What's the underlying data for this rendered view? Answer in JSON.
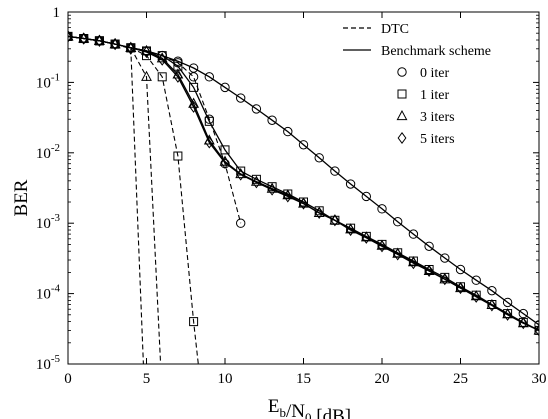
{
  "chart_data": {
    "type": "line",
    "xlabel": "E_b/N_0 [dB]",
    "ylabel": "BER",
    "xlim": [
      0,
      30
    ],
    "ylim": [
      1e-05,
      1
    ],
    "yscale": "log",
    "grid": false,
    "legend_position": "top-right",
    "x_ticks": [
      "0",
      "5",
      "10",
      "15",
      "20",
      "25",
      "30"
    ],
    "y_ticks": [
      {
        "value": 1e-05,
        "base": "10",
        "exp": "-5"
      },
      {
        "value": 0.0001,
        "base": "10",
        "exp": "-4"
      },
      {
        "value": 0.001,
        "base": "10",
        "exp": "-3"
      },
      {
        "value": 0.01,
        "base": "10",
        "exp": "-2"
      },
      {
        "value": 0.1,
        "base": "10",
        "exp": "-1"
      },
      {
        "value": 1,
        "base": "1",
        "exp": ""
      }
    ],
    "legend": {
      "lines": [
        {
          "label": "DTC",
          "style": "dashed"
        },
        {
          "label": "Benchmark scheme",
          "style": "solid"
        }
      ],
      "markers": [
        {
          "label": "0 iter",
          "marker": "circle"
        },
        {
          "label": "1 iter",
          "marker": "square"
        },
        {
          "label": "3 iters",
          "marker": "triangle"
        },
        {
          "label": "5 iters",
          "marker": "diamond"
        }
      ]
    },
    "series": [
      {
        "name": "Benchmark scheme",
        "iteration": "0 iter",
        "style": "solid",
        "marker": "circle",
        "x": [
          0,
          1,
          2,
          3,
          4,
          5,
          6,
          7,
          8,
          9,
          10,
          11,
          12,
          13,
          14,
          15,
          16,
          17,
          18,
          19,
          20,
          21,
          22,
          23,
          24,
          25,
          26,
          27,
          28,
          29,
          30
        ],
        "y": [
          0.45,
          0.42,
          0.39,
          0.35,
          0.31,
          0.28,
          0.24,
          0.2,
          0.16,
          0.12,
          0.085,
          0.06,
          0.042,
          0.029,
          0.02,
          0.013,
          0.0085,
          0.0055,
          0.0036,
          0.0024,
          0.0016,
          0.00105,
          0.0007,
          0.00047,
          0.00032,
          0.00022,
          0.000155,
          0.00011,
          7.5e-05,
          5.2e-05,
          3.6e-05
        ]
      },
      {
        "name": "Benchmark scheme",
        "iteration": "1 iter",
        "style": "solid",
        "marker": "square",
        "x": [
          0,
          1,
          2,
          3,
          4,
          5,
          6,
          7,
          8,
          9,
          10,
          11,
          12,
          13,
          14,
          15,
          16,
          17,
          18,
          19,
          20,
          21,
          22,
          23,
          24,
          25,
          26,
          27,
          28,
          29,
          30
        ],
        "y": [
          0.45,
          0.42,
          0.39,
          0.35,
          0.31,
          0.28,
          0.24,
          0.17,
          0.085,
          0.028,
          0.011,
          0.0055,
          0.0042,
          0.0033,
          0.0026,
          0.002,
          0.0015,
          0.0011,
          0.00085,
          0.00065,
          0.0005,
          0.00038,
          0.00029,
          0.00022,
          0.00017,
          0.000125,
          9.5e-05,
          7e-05,
          5.2e-05,
          3.9e-05,
          3e-05
        ]
      },
      {
        "name": "Benchmark scheme",
        "iteration": "3 iters",
        "style": "solid",
        "marker": "triangle",
        "x": [
          0,
          1,
          2,
          3,
          4,
          5,
          6,
          7,
          8,
          9,
          10,
          11,
          12,
          13,
          14,
          15,
          16,
          17,
          18,
          19,
          20,
          21,
          22,
          23,
          24,
          25,
          26,
          27,
          28,
          29,
          30
        ],
        "y": [
          0.45,
          0.42,
          0.39,
          0.35,
          0.31,
          0.28,
          0.22,
          0.13,
          0.05,
          0.015,
          0.0075,
          0.005,
          0.0039,
          0.0031,
          0.0025,
          0.0019,
          0.0014,
          0.0011,
          0.00082,
          0.00063,
          0.00048,
          0.00037,
          0.00028,
          0.00021,
          0.00016,
          0.00012,
          9.2e-05,
          6.9e-05,
          5.1e-05,
          3.8e-05,
          3e-05
        ]
      },
      {
        "name": "Benchmark scheme",
        "iteration": "5 iters",
        "style": "solid",
        "marker": "diamond",
        "x": [
          0,
          1,
          2,
          3,
          4,
          5,
          6,
          7,
          8,
          9,
          10,
          11,
          12,
          13,
          14,
          15,
          16,
          17,
          18,
          19,
          20,
          21,
          22,
          23,
          24,
          25,
          26,
          27,
          28,
          29,
          30
        ],
        "y": [
          0.45,
          0.42,
          0.39,
          0.35,
          0.31,
          0.27,
          0.21,
          0.12,
          0.045,
          0.014,
          0.0072,
          0.0049,
          0.0038,
          0.003,
          0.0024,
          0.0019,
          0.0014,
          0.0011,
          0.0008,
          0.00062,
          0.00047,
          0.00036,
          0.00027,
          0.00021,
          0.00016,
          0.00012,
          9e-05,
          6.8e-05,
          5e-05,
          3.8e-05,
          3e-05
        ]
      },
      {
        "name": "DTC",
        "iteration": "0 iter",
        "style": "dashed",
        "marker": "circle",
        "x": [
          0,
          1,
          2,
          3,
          4,
          5,
          6,
          7,
          8,
          9,
          10,
          11
        ],
        "y": [
          0.45,
          0.42,
          0.39,
          0.35,
          0.31,
          0.28,
          0.24,
          0.19,
          0.12,
          0.03,
          0.007,
          0.001
        ]
      },
      {
        "name": "DTC",
        "iteration": "1 iter",
        "style": "dashed",
        "marker": "square",
        "x": [
          0,
          1,
          2,
          3,
          4,
          5,
          6,
          7,
          8,
          8.3
        ],
        "y": [
          0.45,
          0.42,
          0.39,
          0.35,
          0.31,
          0.24,
          0.12,
          0.009,
          4e-05,
          1e-05
        ]
      },
      {
        "name": "DTC",
        "iteration": "3 iters",
        "style": "dashed",
        "marker": "triangle",
        "x": [
          0,
          1,
          2,
          3,
          4,
          5,
          5.9
        ],
        "y": [
          0.45,
          0.42,
          0.39,
          0.35,
          0.31,
          0.12,
          1e-05
        ],
        "marker_count": 6
      },
      {
        "name": "DTC",
        "iteration": "5 iters",
        "style": "dashed",
        "marker": "diamond",
        "x": [
          0,
          1,
          2,
          3,
          4,
          4.8
        ],
        "y": [
          0.45,
          0.42,
          0.39,
          0.35,
          0.3,
          1e-05
        ],
        "marker_count": 5
      }
    ]
  }
}
